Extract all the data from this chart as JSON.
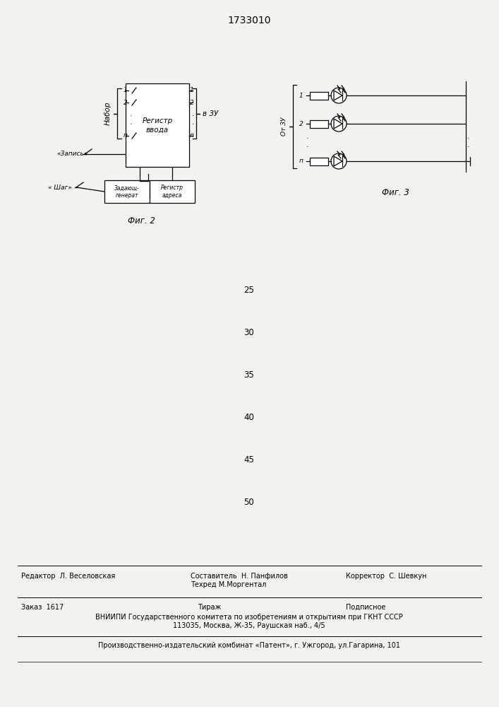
{
  "title": "1733010",
  "fig2_label": "Фиг. 2",
  "fig3_label": "Фиг. 3",
  "nabor_label": "Набор",
  "zapis_label": "«Запись»",
  "shag_label": "« Шаг»",
  "registr_vvoda_line1": "Регистр",
  "registr_vvoda_line2": "ввода",
  "v_zu": "в ЗУ",
  "ot_zu": "От ЗУ",
  "zadayu_generat_line1": "Задающ-",
  "zadayu_generat_line2": "генерат",
  "registr_adresa_line1": "Регистр",
  "registr_adresa_line2": "адреса",
  "footer_col1_r1": "Редактор  Л. Веселовская",
  "footer_col2_r1a": "Составитель  Н. Панфилов",
  "footer_col2_r1b": "Техред М.Моргентал",
  "footer_col3_r1": "Корректор  С. Шевкун",
  "footer_col1_r2": "Заказ  1617",
  "footer_col2_r2": "Тираж",
  "footer_col3_r2": "Подписное",
  "footer_vniiipi": "ВНИИПИ Государственного комитета по изобретениям и открытиям при ГКНТ СССР",
  "footer_address": "113035, Москва, Ж-35, Раушская наб., 4/5",
  "footer_patent": "Производственно-издательский комбинат «Патент», г. Ужгород, ул.Гагарина, 101",
  "numbers": [
    "25",
    "30",
    "35",
    "40",
    "45",
    "50"
  ],
  "bg_color": "#f2f2ee"
}
